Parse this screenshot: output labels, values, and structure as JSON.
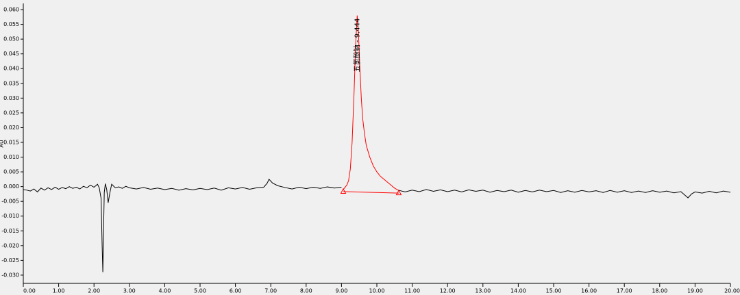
{
  "chart_data": {
    "type": "line",
    "y_label": "AU",
    "annotation": "五氯酚钠 - 9.444",
    "xlim": [
      0,
      20
    ],
    "ylim": [
      -0.0328,
      0.0621
    ],
    "xticks": [
      {
        "value": 0,
        "label": "0.00"
      },
      {
        "value": 1,
        "label": "1.00"
      },
      {
        "value": 2,
        "label": "2.00"
      },
      {
        "value": 3,
        "label": "3.00"
      },
      {
        "value": 4,
        "label": "4.00"
      },
      {
        "value": 5,
        "label": "5.00"
      },
      {
        "value": 6,
        "label": "6.00"
      },
      {
        "value": 7,
        "label": "7.00"
      },
      {
        "value": 8,
        "label": "8.00"
      },
      {
        "value": 9,
        "label": "9.00"
      },
      {
        "value": 10,
        "label": "10.00"
      },
      {
        "value": 11,
        "label": "11.00"
      },
      {
        "value": 12,
        "label": "12.00"
      },
      {
        "value": 13,
        "label": "13.00"
      },
      {
        "value": 14,
        "label": "14.00"
      },
      {
        "value": 15,
        "label": "15.00"
      },
      {
        "value": 16,
        "label": "16.00"
      },
      {
        "value": 17,
        "label": "17.00"
      },
      {
        "value": 18,
        "label": "18.00"
      },
      {
        "value": 19,
        "label": "19.00"
      },
      {
        "value": 20,
        "label": "20.00"
      }
    ],
    "yticks": [
      {
        "value": -0.03,
        "label": "-0.030"
      },
      {
        "value": -0.025,
        "label": "-0.025"
      },
      {
        "value": -0.02,
        "label": "-0.020"
      },
      {
        "value": -0.015,
        "label": "-0.015"
      },
      {
        "value": -0.01,
        "label": "-0.010"
      },
      {
        "value": -0.005,
        "label": "-0.005"
      },
      {
        "value": 0,
        "label": "0.000"
      },
      {
        "value": 0.005,
        "label": "0.005"
      },
      {
        "value": 0.01,
        "label": "0.010"
      },
      {
        "value": 0.015,
        "label": "0.015"
      },
      {
        "value": 0.02,
        "label": "0.020"
      },
      {
        "value": 0.025,
        "label": "0.025"
      },
      {
        "value": 0.03,
        "label": "0.030"
      },
      {
        "value": 0.035,
        "label": "0.035"
      },
      {
        "value": 0.04,
        "label": "0.040"
      },
      {
        "value": 0.045,
        "label": "0.045"
      },
      {
        "value": 0.05,
        "label": "0.050"
      },
      {
        "value": 0.055,
        "label": "0.055"
      },
      {
        "value": 0.06,
        "label": "0.060"
      }
    ],
    "grid": false,
    "series": [
      {
        "color": "#000000",
        "x": [
          0,
          0.1,
          0.2,
          0.3,
          0.4,
          0.5,
          0.6,
          0.7,
          0.8,
          0.9,
          1.0,
          1.1,
          1.2,
          1.3,
          1.4,
          1.5,
          1.6,
          1.7,
          1.8,
          1.9,
          2.0,
          2.1,
          2.15,
          2.2,
          2.23,
          2.25,
          2.27,
          2.29,
          2.32,
          2.36,
          2.4,
          2.45,
          2.5,
          2.6,
          2.7,
          2.8,
          2.9,
          3.0,
          3.2,
          3.4,
          3.6,
          3.8,
          4.0,
          4.2,
          4.4,
          4.6,
          4.8,
          5.0,
          5.2,
          5.4,
          5.6,
          5.8,
          6.0,
          6.2,
          6.4,
          6.6,
          6.8,
          6.9,
          6.95,
          7.05,
          7.2,
          7.4,
          7.6,
          7.8,
          8.0,
          8.2,
          8.4,
          8.6,
          8.8,
          9.0,
          null,
          10.6,
          10.8,
          11.0,
          11.2,
          11.4,
          11.6,
          11.8,
          12.0,
          12.2,
          12.4,
          12.6,
          12.8,
          13.0,
          13.2,
          13.4,
          13.6,
          13.8,
          14.0,
          14.2,
          14.4,
          14.6,
          14.8,
          15.0,
          15.2,
          15.4,
          15.6,
          15.8,
          16.0,
          16.2,
          16.4,
          16.6,
          16.8,
          17.0,
          17.2,
          17.4,
          17.6,
          17.8,
          18.0,
          18.2,
          18.4,
          18.6,
          18.8,
          18.9,
          19.0,
          19.2,
          19.4,
          19.6,
          19.8,
          20.0
        ],
        "values": [
          -0.001,
          -0.0012,
          -0.0015,
          -0.0008,
          -0.0018,
          -0.0005,
          -0.0012,
          -0.0004,
          -0.001,
          -0.0002,
          -0.0009,
          -0.0003,
          -0.0007,
          0.0,
          -0.0006,
          -0.0002,
          -0.0008,
          0.0001,
          -0.0004,
          0.0005,
          -0.0002,
          0.0008,
          -0.0005,
          -0.004,
          -0.02,
          -0.029,
          -0.015,
          -0.002,
          0.001,
          -0.001,
          -0.0055,
          -0.002,
          0.0008,
          -0.0004,
          -0.0001,
          -0.0006,
          0.0001,
          -0.0004,
          -0.0008,
          -0.0003,
          -0.0009,
          -0.0005,
          -0.001,
          -0.0006,
          -0.0012,
          -0.0007,
          -0.0011,
          -0.0006,
          -0.001,
          -0.0005,
          -0.0012,
          -0.0004,
          -0.0008,
          -0.0003,
          -0.0009,
          -0.0004,
          -0.0002,
          0.0012,
          0.0025,
          0.0012,
          0.0003,
          -0.0003,
          -0.0008,
          -0.0002,
          -0.0007,
          -0.0002,
          -0.0006,
          -0.0001,
          -0.0005,
          -0.0002,
          null,
          -0.0012,
          -0.0018,
          -0.0012,
          -0.0017,
          -0.001,
          -0.0016,
          -0.0011,
          -0.0017,
          -0.0012,
          -0.0018,
          -0.0011,
          -0.0016,
          -0.0012,
          -0.0019,
          -0.0013,
          -0.0017,
          -0.0012,
          -0.0019,
          -0.0013,
          -0.0018,
          -0.0012,
          -0.0017,
          -0.0013,
          -0.002,
          -0.0014,
          -0.0019,
          -0.0013,
          -0.0018,
          -0.0014,
          -0.002,
          -0.0013,
          -0.0019,
          -0.0014,
          -0.002,
          -0.0015,
          -0.002,
          -0.0014,
          -0.0019,
          -0.0015,
          -0.0021,
          -0.0017,
          -0.0038,
          -0.0025,
          -0.0018,
          -0.0022,
          -0.0016,
          -0.0021,
          -0.0015,
          -0.0019
        ]
      },
      {
        "color": "#ff0000",
        "x": [
          9.05,
          9.15,
          9.2,
          9.25,
          9.3,
          9.35,
          9.4,
          9.444,
          9.48,
          9.52,
          9.56,
          9.6,
          9.65,
          9.7,
          9.8,
          9.9,
          10.0,
          10.1,
          10.2,
          10.3,
          10.4,
          10.5,
          10.6
        ],
        "values": [
          -0.001,
          0.0005,
          0.002,
          0.006,
          0.015,
          0.03,
          0.048,
          0.058,
          0.052,
          0.04,
          0.03,
          0.023,
          0.018,
          0.014,
          0.01,
          0.007,
          0.005,
          0.0035,
          0.0025,
          0.0015,
          0.0005,
          -0.0005,
          -0.0012
        ]
      },
      {
        "color": "#ff0000",
        "marker": "triangle",
        "x": [
          9.05,
          10.62
        ],
        "values": [
          -0.0017,
          -0.0022
        ]
      }
    ]
  }
}
